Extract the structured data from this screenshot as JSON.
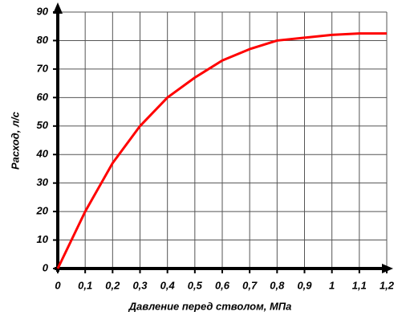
{
  "chart_data": {
    "type": "line",
    "x_label": "Давление перед стволом, МПа",
    "y_label": "Расход, л/с",
    "x": [
      0,
      0.1,
      0.2,
      0.3,
      0.4,
      0.5,
      0.6,
      0.7,
      0.8,
      0.9,
      1,
      1.1,
      1.2
    ],
    "values": [
      0,
      20,
      37,
      50,
      60,
      67,
      73,
      77,
      80,
      81,
      82,
      82.5,
      82.5
    ],
    "color": "#ff0000",
    "xlim": [
      0,
      1.2
    ],
    "xticks": [
      0,
      {
        "value": 0.1,
        "label": "0,1"
      },
      {
        "value": 0.2,
        "label": "0,2"
      },
      {
        "value": 0.3,
        "label": "0,3"
      },
      {
        "value": 0.4,
        "label": "0,4"
      },
      {
        "value": 0.5,
        "label": "0,5"
      },
      {
        "value": 0.6,
        "label": "0,6"
      },
      {
        "value": 0.7,
        "label": "0,7"
      },
      {
        "value": 0.8,
        "label": "0,8"
      },
      {
        "value": 0.9,
        "label": "0,9"
      },
      1,
      {
        "value": 1.1,
        "label": "1,1"
      },
      {
        "value": 1.2,
        "label": "1,2"
      }
    ],
    "ylim": [
      0,
      90
    ],
    "yticks": [
      0,
      10,
      20,
      30,
      40,
      50,
      60,
      70,
      80,
      90
    ],
    "grid": true
  }
}
